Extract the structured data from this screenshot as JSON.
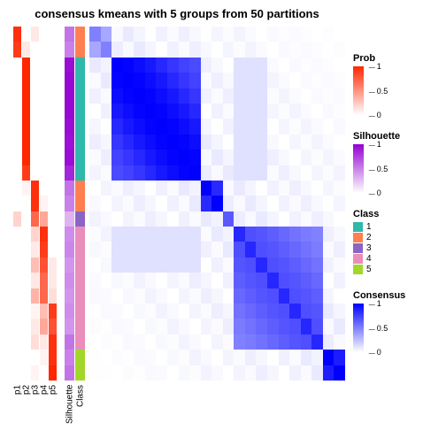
{
  "title": "consensus kmeans with 5 groups from 50 partitions",
  "layout": {
    "anno_width_p": 9,
    "anno_width_sc": 11,
    "gap_after_p": 8,
    "gap_after_sc": 4
  },
  "colors": {
    "prob_low": "#ffffff",
    "prob_high": "#ff2600",
    "sil_low": "#ffffff",
    "sil_high": "#9400d3",
    "cons_low": "#ffffff",
    "cons_high": "#0000ff",
    "class": {
      "1": "#2fb8ac",
      "2": "#ff7f50",
      "3": "#8a65c5",
      "4": "#e98dbb",
      "5": "#a2d729"
    }
  },
  "anno_columns": [
    "p1",
    "p2",
    "p3",
    "p4",
    "p5",
    "Silhouette",
    "Class"
  ],
  "rows": [
    {
      "p": [
        0.95,
        0.0,
        0.1,
        0.0,
        0.0
      ],
      "sil": 0.55,
      "cls": "2"
    },
    {
      "p": [
        0.9,
        0.1,
        0.0,
        0.0,
        0.0
      ],
      "sil": 0.5,
      "cls": "2"
    },
    {
      "p": [
        0.0,
        1.0,
        0.0,
        0.0,
        0.0
      ],
      "sil": 0.95,
      "cls": "1"
    },
    {
      "p": [
        0.0,
        1.0,
        0.0,
        0.0,
        0.0
      ],
      "sil": 0.97,
      "cls": "1"
    },
    {
      "p": [
        0.0,
        1.0,
        0.0,
        0.0,
        0.0
      ],
      "sil": 0.97,
      "cls": "1"
    },
    {
      "p": [
        0.0,
        1.0,
        0.0,
        0.0,
        0.0
      ],
      "sil": 0.97,
      "cls": "1"
    },
    {
      "p": [
        0.0,
        1.0,
        0.0,
        0.0,
        0.0
      ],
      "sil": 0.95,
      "cls": "1"
    },
    {
      "p": [
        0.0,
        1.0,
        0.0,
        0.0,
        0.0
      ],
      "sil": 0.93,
      "cls": "1"
    },
    {
      "p": [
        0.0,
        1.0,
        0.0,
        0.0,
        0.0
      ],
      "sil": 0.95,
      "cls": "1"
    },
    {
      "p": [
        0.0,
        0.9,
        0.0,
        0.0,
        0.0
      ],
      "sil": 0.85,
      "cls": "1"
    },
    {
      "p": [
        0.0,
        0.05,
        0.95,
        0.0,
        0.0
      ],
      "sil": 0.55,
      "cls": "2"
    },
    {
      "p": [
        0.0,
        0.0,
        0.95,
        0.05,
        0.0
      ],
      "sil": 0.5,
      "cls": "2"
    },
    {
      "p": [
        0.2,
        0.0,
        0.7,
        0.4,
        0.0
      ],
      "sil": 0.3,
      "cls": "3"
    },
    {
      "p": [
        0.0,
        0.0,
        0.2,
        0.95,
        0.0
      ],
      "sil": 0.45,
      "cls": "4"
    },
    {
      "p": [
        0.0,
        0.0,
        0.1,
        0.9,
        0.0
      ],
      "sil": 0.48,
      "cls": "4"
    },
    {
      "p": [
        0.0,
        0.0,
        0.3,
        0.8,
        0.1
      ],
      "sil": 0.42,
      "cls": "4"
    },
    {
      "p": [
        0.0,
        0.0,
        0.1,
        0.7,
        0.1
      ],
      "sil": 0.45,
      "cls": "4"
    },
    {
      "p": [
        0.0,
        0.0,
        0.35,
        0.7,
        0.15
      ],
      "sil": 0.42,
      "cls": "4"
    },
    {
      "p": [
        0.0,
        0.0,
        0.05,
        0.3,
        0.9
      ],
      "sil": 0.45,
      "cls": "4"
    },
    {
      "p": [
        0.0,
        0.0,
        0.1,
        0.4,
        0.8
      ],
      "sil": 0.42,
      "cls": "4"
    },
    {
      "p": [
        0.0,
        0.0,
        0.15,
        0.1,
        0.95
      ],
      "sil": 0.55,
      "cls": "4"
    },
    {
      "p": [
        0.0,
        0.0,
        0.0,
        0.05,
        0.95
      ],
      "sil": 0.5,
      "cls": "5"
    },
    {
      "p": [
        0.0,
        0.0,
        0.05,
        0.0,
        1.0
      ],
      "sil": 0.55,
      "cls": "5"
    }
  ],
  "heat_blocks": [
    {
      "start": 0,
      "end": 2,
      "intensity": 0.35
    },
    {
      "start": 2,
      "end": 10,
      "intensity": 1.0
    },
    {
      "start": 10,
      "end": 12,
      "intensity": 0.85
    },
    {
      "start": 12,
      "end": 13,
      "intensity": 0.5
    },
    {
      "start": 13,
      "end": 21,
      "intensity": 0.7
    },
    {
      "start": 21,
      "end": 23,
      "intensity": 0.9
    }
  ],
  "cross_block_noise": 0.12,
  "legends": {
    "prob": {
      "title": "Prob",
      "ticks": [
        {
          "v": "1",
          "pos": 0
        },
        {
          "v": "0.5",
          "pos": 0.5
        },
        {
          "v": "0",
          "pos": 1
        }
      ]
    },
    "sil": {
      "title": "Silhouette",
      "ticks": [
        {
          "v": "1",
          "pos": 0
        },
        {
          "v": "0.5",
          "pos": 0.5
        },
        {
          "v": "0",
          "pos": 1
        }
      ]
    },
    "class": {
      "title": "Class",
      "items": [
        "1",
        "2",
        "3",
        "4",
        "5"
      ]
    },
    "cons": {
      "title": "Consensus",
      "ticks": [
        {
          "v": "1",
          "pos": 0
        },
        {
          "v": "0.5",
          "pos": 0.5
        },
        {
          "v": "0",
          "pos": 1
        }
      ]
    }
  }
}
